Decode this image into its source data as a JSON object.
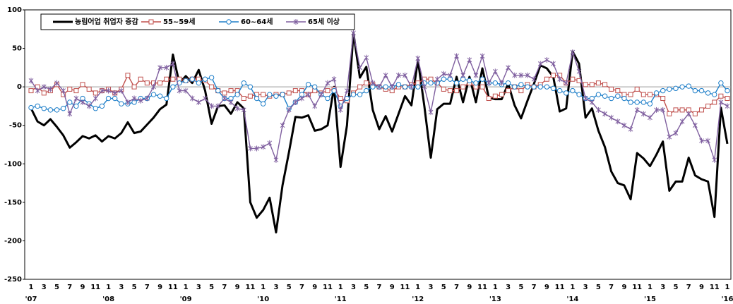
{
  "chart_data": {
    "type": "line",
    "categories": [
      "1",
      null,
      "3",
      null,
      "5",
      null,
      "7",
      null,
      "9",
      null,
      "11",
      null,
      "1",
      null,
      "3",
      null,
      "5",
      null,
      "7",
      null,
      "9",
      null,
      "11",
      null,
      "1",
      null,
      "3",
      null,
      "5",
      null,
      "7",
      null,
      "9",
      null,
      "11",
      null,
      "1",
      null,
      "3",
      null,
      "5",
      null,
      "7",
      null,
      "9",
      null,
      "11",
      null,
      "1",
      null,
      "3",
      null,
      "5",
      null,
      "7",
      null,
      "9",
      null,
      "11",
      null,
      "1",
      null,
      "3",
      null,
      "5",
      null,
      "7",
      null,
      "9",
      null,
      "11",
      null,
      "1",
      null,
      "3",
      null,
      "5",
      null,
      "7",
      null,
      "9",
      null,
      "11",
      null,
      "1",
      null,
      "3",
      null,
      "5",
      null,
      "7",
      null,
      "9",
      null,
      "11",
      null,
      "1",
      null,
      "3",
      null,
      "5",
      null,
      "7",
      null,
      "9",
      null,
      "11",
      null,
      "1"
    ],
    "years": [
      "'07",
      "'08",
      "'09",
      "'10",
      "'11",
      "'12",
      "'13",
      "'14",
      "'15",
      "'16"
    ],
    "ylim": [
      -250,
      100
    ],
    "yticks": [
      100,
      50,
      0,
      -50,
      -100,
      -150,
      -200,
      -250
    ],
    "zero_line": true,
    "series": [
      {
        "name": "농림어업 취업자 증감",
        "color": "#000000",
        "marker": "none",
        "values": [
          -28,
          -45,
          -50,
          -42,
          -52,
          -63,
          -79,
          -72,
          -64,
          -67,
          -63,
          -71,
          -64,
          -67,
          -60,
          -46,
          -60,
          -58,
          -49,
          -40,
          -29,
          -23,
          42,
          5,
          14,
          5,
          22,
          -5,
          -48,
          -25,
          -24,
          -35,
          -20,
          -28,
          -150,
          -170,
          -160,
          -144,
          -189,
          -128,
          -85,
          -39,
          -40,
          -37,
          -57,
          -55,
          -50,
          0,
          -104,
          -50,
          70,
          12,
          26,
          -30,
          -55,
          -38,
          -58,
          -35,
          -12,
          -24,
          35,
          -25,
          -92,
          -29,
          -22,
          -22,
          13,
          -20,
          13,
          -20,
          24,
          -14,
          -16,
          -16,
          4,
          -24,
          -41,
          -18,
          4,
          28,
          24,
          13,
          -32,
          -28,
          46,
          30,
          -40,
          -28,
          -57,
          -78,
          -110,
          -125,
          -128,
          -146,
          -86,
          -93,
          -103,
          -88,
          -71,
          -135,
          -123,
          -123,
          -92,
          -115,
          -120,
          -123,
          -169,
          -27,
          -74
        ]
      },
      {
        "name": "55~59세",
        "color": "#c0504d",
        "marker": "square",
        "values": [
          -5,
          0,
          -8,
          -5,
          3,
          -10,
          -3,
          -5,
          3,
          -3,
          -8,
          -5,
          -3,
          -8,
          -3,
          15,
          0,
          10,
          5,
          5,
          5,
          10,
          10,
          10,
          8,
          10,
          10,
          8,
          0,
          -5,
          -8,
          -5,
          -5,
          -15,
          -12,
          -10,
          -10,
          -12,
          -10,
          -10,
          -8,
          -5,
          -5,
          -10,
          -5,
          -8,
          -5,
          -3,
          -15,
          -18,
          -8,
          0,
          5,
          3,
          0,
          -3,
          -5,
          0,
          0,
          3,
          5,
          10,
          10,
          5,
          -3,
          -5,
          -5,
          0,
          5,
          0,
          0,
          -15,
          -12,
          -10,
          -5,
          0,
          -5,
          3,
          0,
          3,
          10,
          15,
          15,
          5,
          10,
          8,
          3,
          3,
          5,
          3,
          -3,
          -5,
          -10,
          -10,
          -3,
          -10,
          -10,
          -10,
          -15,
          -35,
          -30,
          -30,
          -30,
          -35,
          -30,
          -25,
          -20,
          -12,
          -15
        ]
      },
      {
        "name": "60~64세",
        "color": "#1f7fc9",
        "marker": "circle",
        "values": [
          -27,
          -25,
          -28,
          -30,
          -30,
          -28,
          -20,
          -25,
          -15,
          -22,
          -28,
          -25,
          -15,
          -15,
          -22,
          -22,
          -20,
          -15,
          -15,
          -10,
          -12,
          -15,
          0,
          5,
          8,
          10,
          5,
          10,
          12,
          -5,
          -15,
          -15,
          -10,
          5,
          0,
          -15,
          -22,
          -10,
          -12,
          -10,
          -28,
          -20,
          -10,
          3,
          0,
          -10,
          -15,
          -5,
          -25,
          -15,
          -10,
          -10,
          -5,
          0,
          0,
          0,
          0,
          3,
          0,
          0,
          0,
          5,
          5,
          5,
          10,
          10,
          5,
          10,
          8,
          5,
          10,
          5,
          5,
          3,
          5,
          0,
          3,
          0,
          0,
          0,
          0,
          -2,
          -5,
          -8,
          -5,
          -10,
          -15,
          -15,
          -10,
          -12,
          -15,
          -12,
          -15,
          -20,
          -20,
          -20,
          -22,
          -8,
          -5,
          -3,
          -2,
          0,
          1,
          -5,
          -5,
          -8,
          -10,
          5,
          -5
        ]
      },
      {
        "name": "65세 이상",
        "color": "#7f5f9f",
        "marker": "star",
        "values": [
          8,
          -5,
          0,
          -3,
          5,
          -5,
          -35,
          -15,
          -20,
          -25,
          -15,
          -5,
          -5,
          -8,
          -5,
          -20,
          -15,
          -18,
          -15,
          0,
          25,
          25,
          30,
          -5,
          -5,
          -15,
          -20,
          -15,
          -25,
          -25,
          -15,
          -20,
          -28,
          -30,
          -80,
          -80,
          -78,
          -73,
          -95,
          -50,
          -30,
          -20,
          -15,
          -10,
          -25,
          -10,
          5,
          10,
          -30,
          -5,
          70,
          25,
          38,
          5,
          0,
          15,
          0,
          15,
          15,
          0,
          37,
          0,
          -33,
          10,
          17,
          15,
          40,
          15,
          35,
          15,
          40,
          5,
          20,
          5,
          25,
          15,
          15,
          15,
          10,
          30,
          35,
          30,
          10,
          5,
          45,
          20,
          -15,
          -20,
          -30,
          -35,
          -40,
          -45,
          -50,
          -55,
          -30,
          -35,
          -40,
          -30,
          -30,
          -65,
          -60,
          -45,
          -35,
          -50,
          -70,
          -70,
          -95,
          -20,
          -25
        ]
      }
    ]
  }
}
